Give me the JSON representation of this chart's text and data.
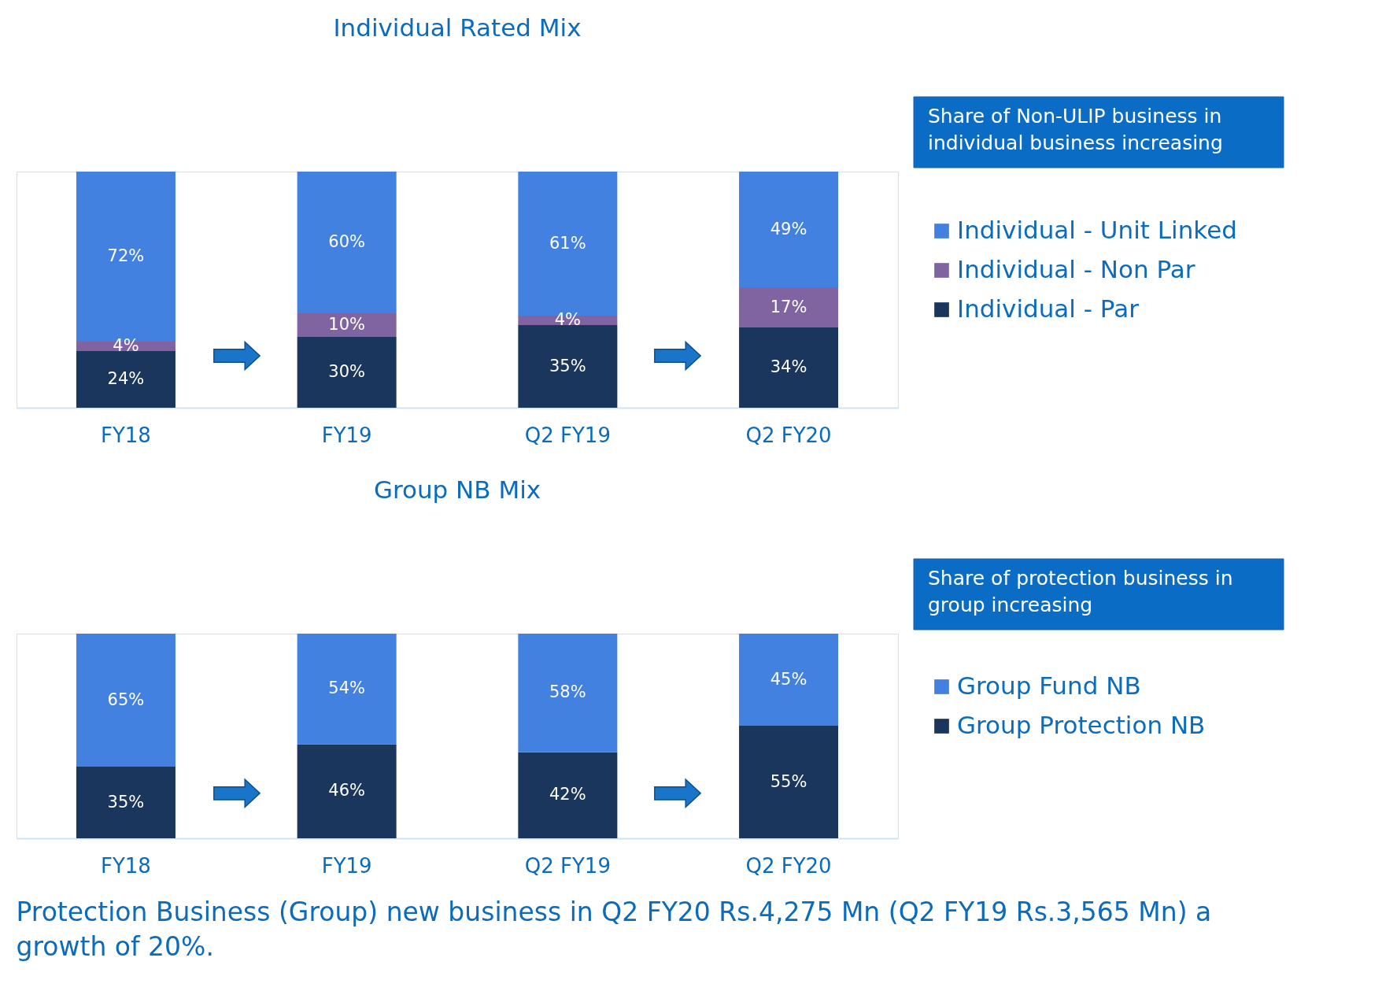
{
  "chart_data": [
    {
      "type": "bar",
      "title": "Individual Rated Mix",
      "stacked": true,
      "legend": "right",
      "categories": [
        "FY18",
        "FY19",
        "Q2 FY19",
        "Q2 FY20"
      ],
      "series": [
        {
          "name": "Individual - Par",
          "color": "#1b365d",
          "values": [
            24,
            30,
            35,
            34
          ],
          "value_labels": [
            "24%",
            "30%",
            "35%",
            "34%"
          ]
        },
        {
          "name": "Individual - Non Par",
          "color": "#8064a2",
          "values": [
            4,
            10,
            4,
            17
          ],
          "value_labels": [
            "4%",
            "10%",
            "4%",
            "17%"
          ]
        },
        {
          "name": "Individual - Unit Linked",
          "color": "#4281e0",
          "values": [
            72,
            60,
            61,
            49
          ],
          "value_labels": [
            "72%",
            "60%",
            "61%",
            "49%"
          ]
        }
      ],
      "annotations": [
        "Share of Non-ULIP business in individual business increasing"
      ]
    },
    {
      "type": "bar",
      "title": "Group NB Mix",
      "stacked": true,
      "legend": "right",
      "categories": [
        "FY18",
        "FY19",
        "Q2 FY19",
        "Q2 FY20"
      ],
      "series": [
        {
          "name": "Group Protection NB",
          "color": "#1b365d",
          "values": [
            35,
            46,
            42,
            55
          ],
          "value_labels": [
            "35%",
            "46%",
            "42%",
            "55%"
          ]
        },
        {
          "name": "Group Fund NB",
          "color": "#4281e0",
          "values": [
            65,
            54,
            58,
            45
          ],
          "value_labels": [
            "65%",
            "54%",
            "58%",
            "45%"
          ]
        }
      ],
      "annotations": [
        "Share of protection business in group increasing",
        "Protection Business (Group) new business in Q2 FY20 Rs.4,275 Mn (Q2 FY19 Rs.3,565 Mn) a growth of 20%."
      ]
    }
  ]
}
